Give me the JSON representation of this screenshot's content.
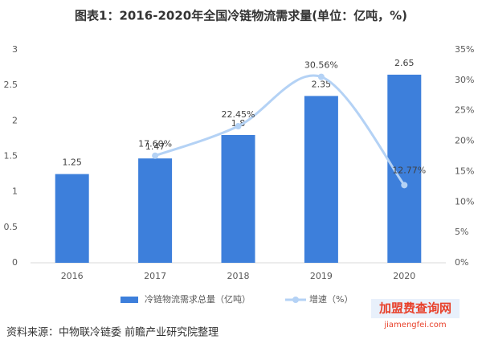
{
  "chart_data": {
    "type": "bar-line",
    "title": "图表1：2016-2020年全国冷链物流需求量(单位：亿吨，%)",
    "categories": [
      "2016",
      "2017",
      "2018",
      "2019",
      "2020"
    ],
    "series": [
      {
        "name": "冷链物流需求总量（亿吨）",
        "type": "bar",
        "color": "#3d7fdb",
        "values": [
          1.25,
          1.47,
          1.8,
          2.35,
          2.65
        ]
      },
      {
        "name": "增速（%）",
        "type": "line",
        "axis": "y2",
        "color": "#b4d2f5",
        "values": [
          null,
          17.6,
          22.45,
          30.56,
          12.77
        ],
        "value_labels": [
          null,
          "17.60%",
          "22.45%",
          "30.56%",
          "12.77%"
        ]
      }
    ],
    "ylim": [
      0,
      3
    ],
    "yticks": [
      0,
      0.5,
      1,
      1.5,
      2,
      2.5,
      3
    ],
    "y2lim": [
      0,
      35
    ],
    "y2ticks": [
      {
        "value": 0,
        "label": "0%"
      },
      {
        "value": 5,
        "label": "5%"
      },
      {
        "value": 10,
        "label": "10%"
      },
      {
        "value": 15,
        "label": "15%"
      },
      {
        "value": 20,
        "label": "20%"
      },
      {
        "value": 25,
        "label": "25%"
      },
      {
        "value": 30,
        "label": "30%"
      },
      {
        "value": 35,
        "label": "35%"
      }
    ],
    "legend": "bottom",
    "source": "资料来源：中物联冷链委 前瞻产业研究院整理",
    "logo": "加盟费查询网",
    "logo_url": "jiamengfei.com"
  }
}
